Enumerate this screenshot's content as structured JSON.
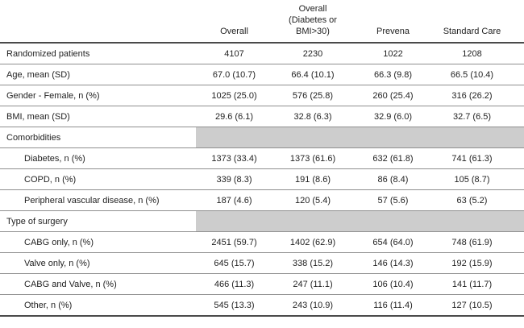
{
  "table": {
    "corner_label": "",
    "columns": [
      {
        "label": "Overall"
      },
      {
        "label": "Overall\n(Diabetes or\nBMI>30)"
      },
      {
        "label": "Prevena"
      },
      {
        "label": "Standard Care"
      }
    ],
    "rows": [
      {
        "type": "data",
        "indent": false,
        "label": "Randomized patients",
        "values": [
          "4107",
          "2230",
          "1022",
          "1208"
        ]
      },
      {
        "type": "data",
        "indent": false,
        "label": "Age, mean (SD)",
        "values": [
          "67.0 (10.7)",
          "66.4 (10.1)",
          "66.3 (9.8)",
          "66.5 (10.4)"
        ]
      },
      {
        "type": "data",
        "indent": false,
        "label": "Gender - Female, n (%)",
        "values": [
          "1025 (25.0)",
          "576 (25.8)",
          "260 (25.4)",
          "316 (26.2)"
        ]
      },
      {
        "type": "data",
        "indent": false,
        "label": "BMI, mean (SD)",
        "values": [
          "29.6 (6.1)",
          "32.8 (6.3)",
          "32.9 (6.0)",
          "32.7 (6.5)"
        ]
      },
      {
        "type": "section",
        "label": "Comorbidities"
      },
      {
        "type": "data",
        "indent": true,
        "label": "Diabetes, n (%)",
        "values": [
          "1373 (33.4)",
          "1373 (61.6)",
          "632 (61.8)",
          "741 (61.3)"
        ]
      },
      {
        "type": "data",
        "indent": true,
        "label": "COPD, n (%)",
        "values": [
          "339 (8.3)",
          "191 (8.6)",
          "86 (8.4)",
          "105 (8.7)"
        ]
      },
      {
        "type": "data",
        "indent": true,
        "label": "Peripheral vascular disease, n (%)",
        "values": [
          "187 (4.6)",
          "120 (5.4)",
          "57 (5.6)",
          "63 (5.2)"
        ]
      },
      {
        "type": "section",
        "label": "Type of surgery"
      },
      {
        "type": "data",
        "indent": true,
        "label": "CABG only, n (%)",
        "values": [
          "2451 (59.7)",
          "1402 (62.9)",
          "654 (64.0)",
          "748 (61.9)"
        ]
      },
      {
        "type": "data",
        "indent": true,
        "label": "Valve only, n (%)",
        "values": [
          "645 (15.7)",
          "338 (15.2)",
          "146 (14.3)",
          "192 (15.9)"
        ]
      },
      {
        "type": "data",
        "indent": true,
        "label": "CABG and Valve, n (%)",
        "values": [
          "466 (11.3)",
          "247 (11.1)",
          "106 (10.4)",
          "141 (11.7)"
        ]
      },
      {
        "type": "data",
        "indent": true,
        "label": "Other, n (%)",
        "values": [
          "545 (13.3)",
          "243 (10.9)",
          "116 (11.4)",
          "127 (10.5)"
        ]
      }
    ]
  },
  "colors": {
    "text": "#1f1f1f",
    "row_rule": "#8f8f8f",
    "heavy_rule": "#4a4a4a",
    "section_fill": "#cdcdcd"
  }
}
